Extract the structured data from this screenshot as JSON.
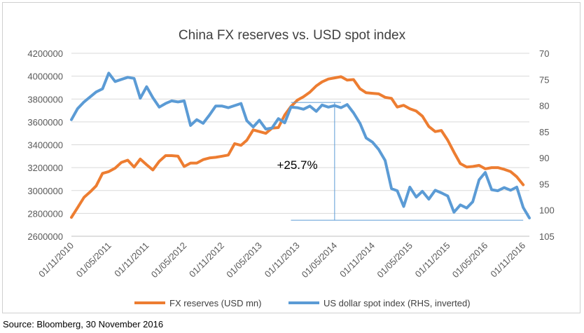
{
  "chart_data": {
    "type": "line",
    "title": "China FX reserves vs. USD spot index",
    "y_left": {
      "ticks": [
        "2600000",
        "2800000",
        "3000000",
        "3200000",
        "3400000",
        "3600000",
        "3800000",
        "4000000",
        "4200000"
      ],
      "min": 2600000,
      "max": 4200000
    },
    "y_right": {
      "ticks": [
        "70",
        "75",
        "80",
        "85",
        "90",
        "95",
        "100",
        "105"
      ],
      "min": 70,
      "max": 105,
      "inverted": true
    },
    "x_ticks": [
      "01/11/2010",
      "01/05/2011",
      "01/11/2011",
      "01/05/2012",
      "01/11/2012",
      "01/05/2013",
      "01/11/2013",
      "01/05/2014",
      "01/11/2014",
      "01/05/2015",
      "01/11/2015",
      "01/05/2016",
      "01/11/2016"
    ],
    "series": [
      {
        "name": "FX reserves (USD mn)",
        "color": "#ed7d31",
        "axis": "left",
        "points": [
          [
            "2010-11-01",
            2765000
          ],
          [
            "2010-12-01",
            2850000
          ],
          [
            "2011-01-01",
            2940000
          ],
          [
            "2011-02-01",
            2990000
          ],
          [
            "2011-03-01",
            3040000
          ],
          [
            "2011-04-01",
            3150000
          ],
          [
            "2011-05-01",
            3165000
          ],
          [
            "2011-06-01",
            3195000
          ],
          [
            "2011-07-01",
            3245000
          ],
          [
            "2011-08-01",
            3265000
          ],
          [
            "2011-09-01",
            3205000
          ],
          [
            "2011-10-01",
            3275000
          ],
          [
            "2011-11-01",
            3225000
          ],
          [
            "2011-12-01",
            3180000
          ],
          [
            "2012-01-01",
            3255000
          ],
          [
            "2012-02-01",
            3305000
          ],
          [
            "2012-03-01",
            3305000
          ],
          [
            "2012-04-01",
            3300000
          ],
          [
            "2012-05-01",
            3210000
          ],
          [
            "2012-06-01",
            3240000
          ],
          [
            "2012-07-01",
            3240000
          ],
          [
            "2012-08-01",
            3270000
          ],
          [
            "2012-09-01",
            3285000
          ],
          [
            "2012-10-01",
            3290000
          ],
          [
            "2012-11-01",
            3300000
          ],
          [
            "2012-12-01",
            3310000
          ],
          [
            "2013-01-01",
            3410000
          ],
          [
            "2013-02-01",
            3395000
          ],
          [
            "2013-03-01",
            3440000
          ],
          [
            "2013-04-01",
            3530000
          ],
          [
            "2013-05-01",
            3515000
          ],
          [
            "2013-06-01",
            3500000
          ],
          [
            "2013-07-01",
            3545000
          ],
          [
            "2013-08-01",
            3550000
          ],
          [
            "2013-09-01",
            3660000
          ],
          [
            "2013-10-01",
            3735000
          ],
          [
            "2013-11-01",
            3790000
          ],
          [
            "2013-12-01",
            3820000
          ],
          [
            "2014-01-01",
            3860000
          ],
          [
            "2014-02-01",
            3915000
          ],
          [
            "2014-03-01",
            3950000
          ],
          [
            "2014-04-01",
            3975000
          ],
          [
            "2014-05-01",
            3985000
          ],
          [
            "2014-06-01",
            3995000
          ],
          [
            "2014-07-01",
            3965000
          ],
          [
            "2014-08-01",
            3970000
          ],
          [
            "2014-09-01",
            3890000
          ],
          [
            "2014-10-01",
            3855000
          ],
          [
            "2014-11-01",
            3850000
          ],
          [
            "2014-12-01",
            3845000
          ],
          [
            "2015-01-01",
            3815000
          ],
          [
            "2015-02-01",
            3805000
          ],
          [
            "2015-03-01",
            3730000
          ],
          [
            "2015-04-01",
            3745000
          ],
          [
            "2015-05-01",
            3715000
          ],
          [
            "2015-06-01",
            3695000
          ],
          [
            "2015-07-01",
            3650000
          ],
          [
            "2015-08-01",
            3560000
          ],
          [
            "2015-09-01",
            3515000
          ],
          [
            "2015-10-01",
            3525000
          ],
          [
            "2015-11-01",
            3440000
          ],
          [
            "2015-12-01",
            3335000
          ],
          [
            "2016-01-01",
            3235000
          ],
          [
            "2016-02-01",
            3205000
          ],
          [
            "2016-03-01",
            3210000
          ],
          [
            "2016-04-01",
            3220000
          ],
          [
            "2016-05-01",
            3190000
          ],
          [
            "2016-06-01",
            3200000
          ],
          [
            "2016-07-01",
            3200000
          ],
          [
            "2016-08-01",
            3185000
          ],
          [
            "2016-09-01",
            3165000
          ],
          [
            "2016-10-01",
            3120000
          ],
          [
            "2016-11-01",
            3050000
          ]
        ]
      },
      {
        "name": "US dollar spot index (RHS, inverted)",
        "color": "#5b9bd5",
        "axis": "right",
        "points": [
          [
            "2010-11-01",
            82.7
          ],
          [
            "2010-12-01",
            80.6
          ],
          [
            "2011-01-01",
            79.3
          ],
          [
            "2011-02-01",
            78.3
          ],
          [
            "2011-03-01",
            77.4
          ],
          [
            "2011-04-01",
            76.8
          ],
          [
            "2011-05-01",
            73.8
          ],
          [
            "2011-06-01",
            75.4
          ],
          [
            "2011-07-01",
            75.0
          ],
          [
            "2011-08-01",
            74.6
          ],
          [
            "2011-09-01",
            74.8
          ],
          [
            "2011-10-01",
            78.6
          ],
          [
            "2011-11-01",
            76.4
          ],
          [
            "2011-12-01",
            78.5
          ],
          [
            "2012-01-01",
            80.3
          ],
          [
            "2012-02-01",
            79.6
          ],
          [
            "2012-03-01",
            79.1
          ],
          [
            "2012-04-01",
            79.3
          ],
          [
            "2012-05-01",
            79.1
          ],
          [
            "2012-06-01",
            83.8
          ],
          [
            "2012-07-01",
            82.7
          ],
          [
            "2012-08-01",
            83.4
          ],
          [
            "2012-09-01",
            81.8
          ],
          [
            "2012-10-01",
            80.1
          ],
          [
            "2012-11-01",
            80.1
          ],
          [
            "2012-12-01",
            80.4
          ],
          [
            "2013-01-01",
            80.0
          ],
          [
            "2013-02-01",
            79.6
          ],
          [
            "2013-03-01",
            82.9
          ],
          [
            "2013-04-01",
            84.1
          ],
          [
            "2013-05-01",
            82.8
          ],
          [
            "2013-06-01",
            84.5
          ],
          [
            "2013-07-01",
            84.3
          ],
          [
            "2013-08-01",
            82.5
          ],
          [
            "2013-09-01",
            83.3
          ],
          [
            "2013-10-01",
            80.3
          ],
          [
            "2013-11-01",
            80.4
          ],
          [
            "2013-12-01",
            80.7
          ],
          [
            "2014-01-01",
            80.1
          ],
          [
            "2014-02-01",
            81.1
          ],
          [
            "2014-03-01",
            79.9
          ],
          [
            "2014-04-01",
            80.3
          ],
          [
            "2014-05-01",
            80.0
          ],
          [
            "2014-06-01",
            80.4
          ],
          [
            "2014-07-01",
            79.8
          ],
          [
            "2014-08-01",
            81.4
          ],
          [
            "2014-09-01",
            83.4
          ],
          [
            "2014-10-01",
            86.2
          ],
          [
            "2014-11-01",
            87.0
          ],
          [
            "2014-12-01",
            88.4
          ],
          [
            "2015-01-01",
            90.5
          ],
          [
            "2015-02-01",
            95.9
          ],
          [
            "2015-03-01",
            96.3
          ],
          [
            "2015-04-01",
            99.3
          ],
          [
            "2015-05-01",
            95.6
          ],
          [
            "2015-06-01",
            97.5
          ],
          [
            "2015-07-01",
            96.4
          ],
          [
            "2015-08-01",
            97.9
          ],
          [
            "2015-09-01",
            96.2
          ],
          [
            "2015-10-01",
            96.7
          ],
          [
            "2015-11-01",
            97.3
          ],
          [
            "2015-12-01",
            100.4
          ],
          [
            "2016-01-01",
            99.0
          ],
          [
            "2016-02-01",
            99.6
          ],
          [
            "2016-03-01",
            98.4
          ],
          [
            "2016-04-01",
            94.2
          ],
          [
            "2016-05-01",
            92.8
          ],
          [
            "2016-06-01",
            96.1
          ],
          [
            "2016-07-01",
            96.3
          ],
          [
            "2016-08-01",
            95.7
          ],
          [
            "2016-09-01",
            96.2
          ],
          [
            "2016-10-01",
            95.6
          ],
          [
            "2016-11-01",
            99.5
          ],
          [
            "2016-12-01",
            101.5
          ]
        ]
      }
    ],
    "annotation": {
      "text": "+25.7%",
      "bracket_top_date": "2014-06-01",
      "bracket_bottom_date": "2016-11-01",
      "top_from_date": "2013-10-01",
      "top_value_left": 3770000,
      "bottom_from_date": "2013-10-01",
      "bottom_value_left": 2740000,
      "vertical_date": "2014-05-01"
    },
    "legend": {
      "position": "bottom"
    },
    "grid": true,
    "x_range": [
      "2010-11-01",
      "2016-12-01"
    ]
  },
  "source_note": "Source: Bloomberg, 30 November 2016"
}
